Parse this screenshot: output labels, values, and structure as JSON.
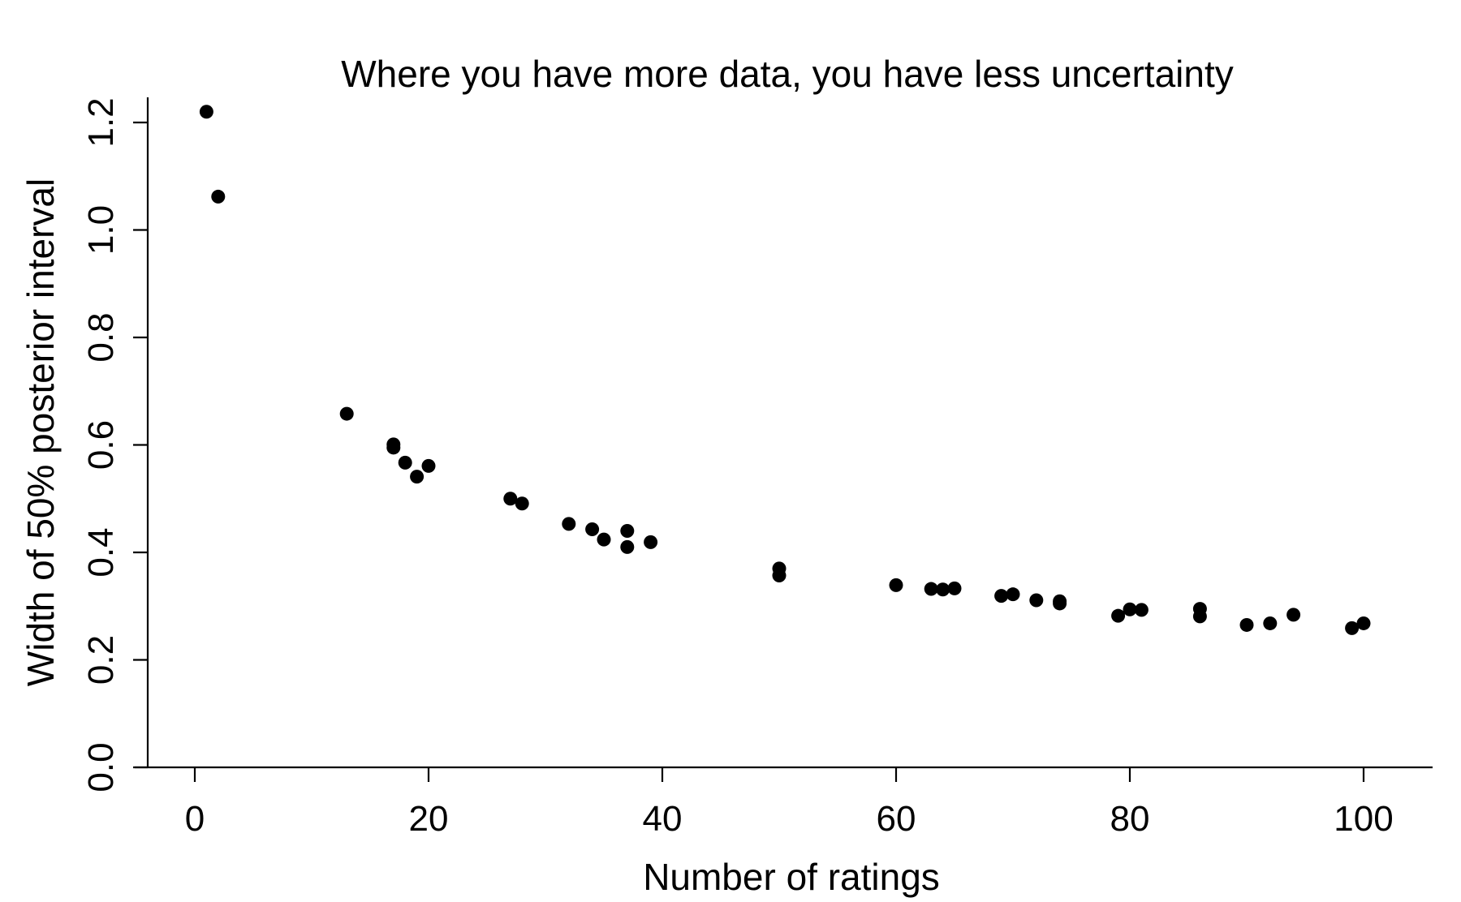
{
  "chart_data": {
    "type": "scatter",
    "title": "Where you have more data, you have less uncertainty",
    "xlabel": "Number of ratings",
    "ylabel": "Width of 50% posterior interval",
    "xlim": [
      -4,
      106
    ],
    "ylim": [
      0,
      1.25
    ],
    "xticks": [
      "0",
      "20",
      "40",
      "60",
      "80",
      "100"
    ],
    "yticks": [
      "0.0",
      "0.2",
      "0.4",
      "0.6",
      "0.8",
      "1.0",
      "1.2"
    ],
    "grid": false,
    "legend": "none",
    "point_color": "#000000",
    "series": [
      {
        "points": [
          {
            "x": 1,
            "y": 1.22
          },
          {
            "x": 2,
            "y": 1.062
          },
          {
            "x": 13,
            "y": 0.658
          },
          {
            "x": 17,
            "y": 0.601
          },
          {
            "x": 17,
            "y": 0.595
          },
          {
            "x": 18,
            "y": 0.567
          },
          {
            "x": 19,
            "y": 0.541
          },
          {
            "x": 20,
            "y": 0.561
          },
          {
            "x": 27,
            "y": 0.5
          },
          {
            "x": 28,
            "y": 0.491
          },
          {
            "x": 32,
            "y": 0.453
          },
          {
            "x": 34,
            "y": 0.443
          },
          {
            "x": 35,
            "y": 0.424
          },
          {
            "x": 37,
            "y": 0.44
          },
          {
            "x": 37,
            "y": 0.41
          },
          {
            "x": 39,
            "y": 0.419
          },
          {
            "x": 50,
            "y": 0.37
          },
          {
            "x": 50,
            "y": 0.357
          },
          {
            "x": 60,
            "y": 0.339
          },
          {
            "x": 63,
            "y": 0.332
          },
          {
            "x": 64,
            "y": 0.331
          },
          {
            "x": 65,
            "y": 0.333
          },
          {
            "x": 69,
            "y": 0.319
          },
          {
            "x": 70,
            "y": 0.322
          },
          {
            "x": 72,
            "y": 0.311
          },
          {
            "x": 74,
            "y": 0.309
          },
          {
            "x": 74,
            "y": 0.305
          },
          {
            "x": 79,
            "y": 0.282
          },
          {
            "x": 80,
            "y": 0.294
          },
          {
            "x": 81,
            "y": 0.293
          },
          {
            "x": 86,
            "y": 0.295
          },
          {
            "x": 86,
            "y": 0.281
          },
          {
            "x": 90,
            "y": 0.265
          },
          {
            "x": 92,
            "y": 0.268
          },
          {
            "x": 94,
            "y": 0.284
          },
          {
            "x": 99,
            "y": 0.259
          },
          {
            "x": 100,
            "y": 0.268
          }
        ]
      }
    ]
  }
}
